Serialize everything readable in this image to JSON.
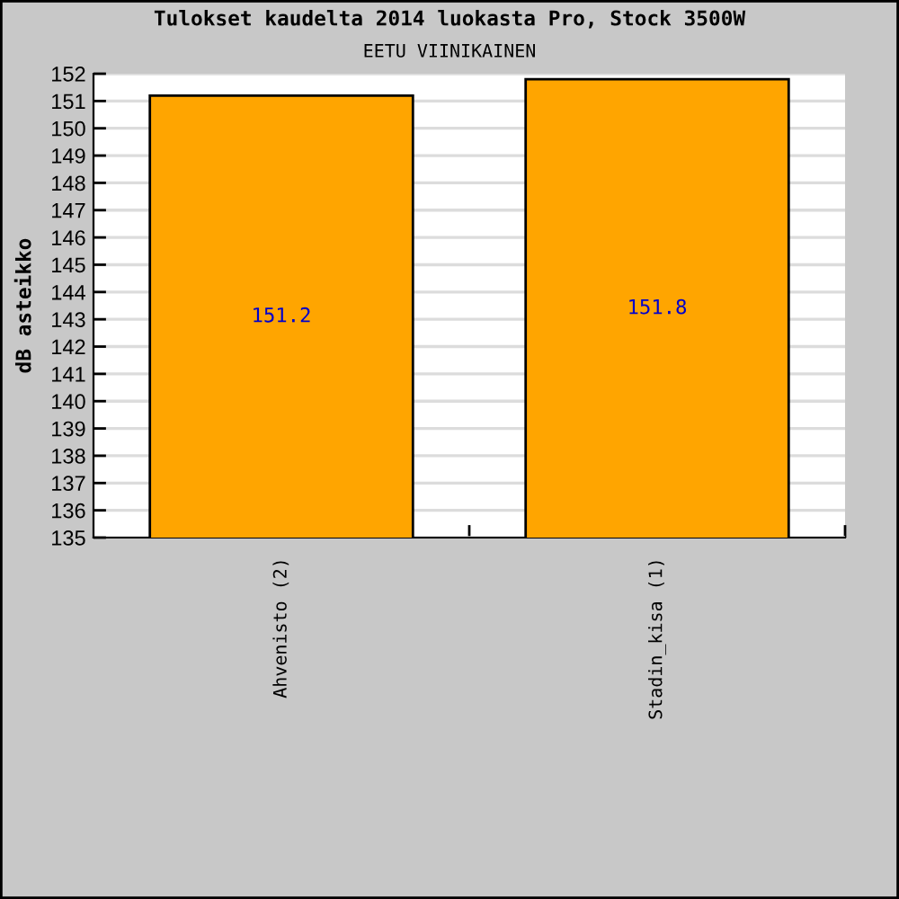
{
  "chart_data": {
    "type": "bar",
    "title": "Tulokset kaudelta 2014 luokasta Pro, Stock 3500W",
    "subtitle": "EETU VIINIKAINEN",
    "ylabel": "dB asteikko",
    "categories": [
      "Ahvenisto (2)",
      "Stadin_kisa (1)"
    ],
    "values": [
      151.2,
      151.8
    ],
    "color": "#ffa500",
    "ylim": [
      135,
      152
    ],
    "yticks": [
      135,
      136,
      137,
      138,
      139,
      140,
      141,
      142,
      143,
      144,
      145,
      146,
      147,
      148,
      149,
      150,
      151,
      152
    ],
    "grid": "y",
    "data_labels": true
  }
}
